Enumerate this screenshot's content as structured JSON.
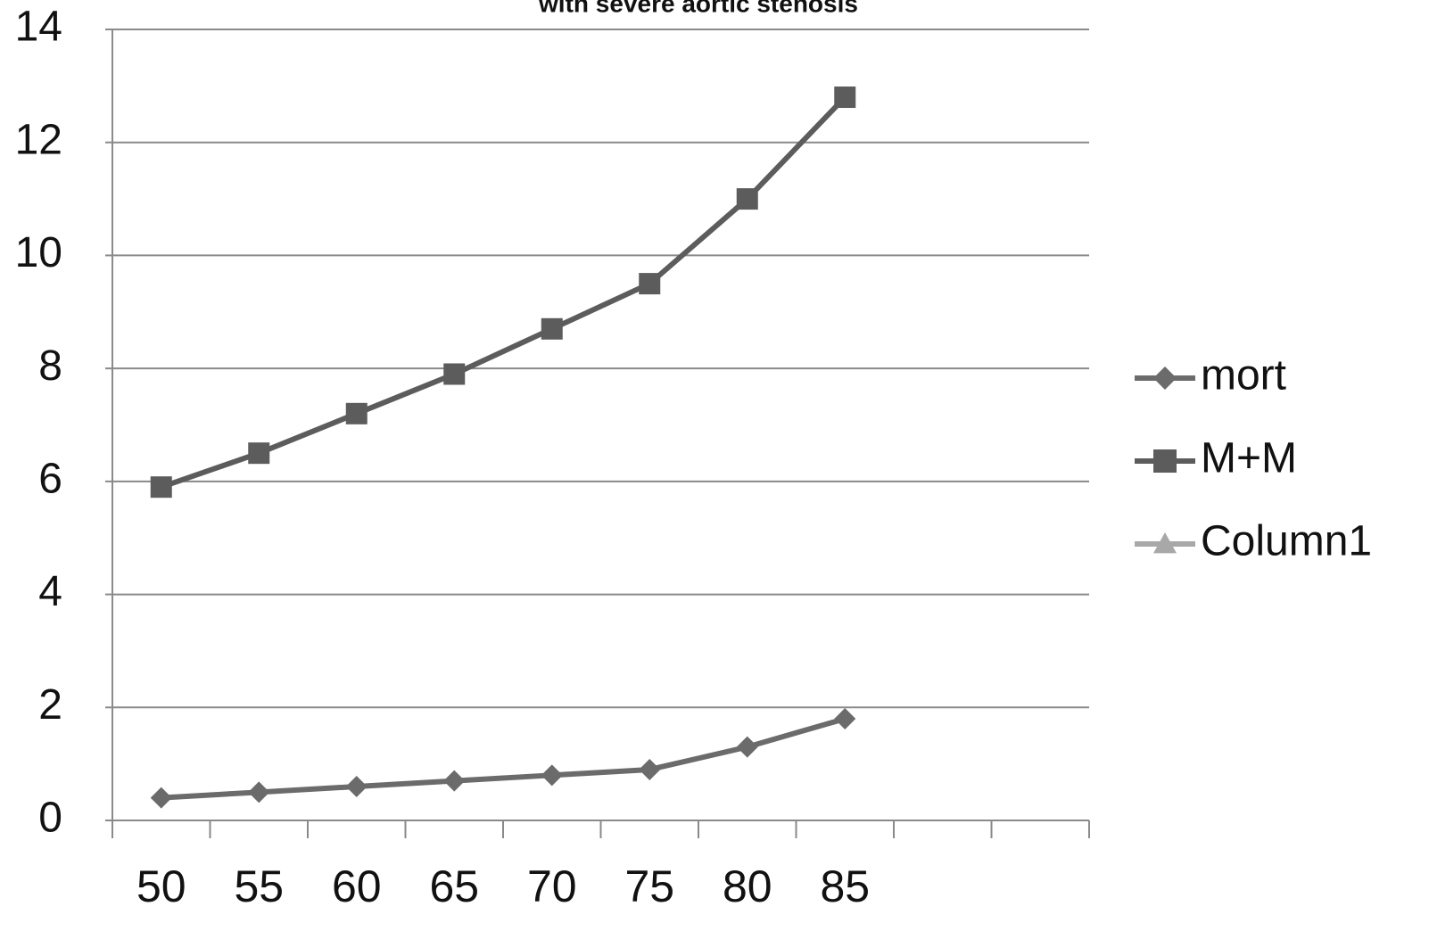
{
  "chart_data": {
    "type": "line",
    "title": "with severe aortic stenosis",
    "categories": [
      "50",
      "55",
      "60",
      "65",
      "70",
      "75",
      "80",
      "85",
      null,
      null
    ],
    "series": [
      {
        "name": "mort",
        "color": "#6b6b6b",
        "marker": "diamond",
        "values": [
          0.4,
          0.5,
          0.6,
          0.7,
          0.8,
          0.9,
          1.3,
          1.8,
          null,
          null
        ]
      },
      {
        "name": "M+M",
        "color": "#5c5c5c",
        "marker": "square",
        "values": [
          5.9,
          6.5,
          7.2,
          7.9,
          8.7,
          9.5,
          11.0,
          12.8,
          null,
          null
        ]
      },
      {
        "name": "Column1",
        "color": "#a8a8a8",
        "marker": "triangle",
        "values": [
          null,
          null,
          null,
          null,
          null,
          null,
          null,
          null,
          null,
          null
        ]
      }
    ],
    "ylim": [
      0,
      14
    ],
    "yticks": [
      0,
      2,
      4,
      6,
      8,
      10,
      12,
      14
    ],
    "grid": true,
    "legend": "right"
  }
}
